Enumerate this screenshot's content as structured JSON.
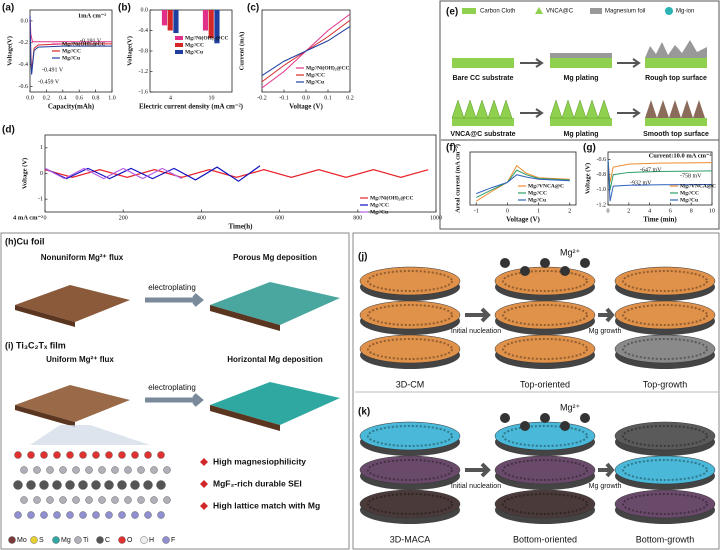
{
  "chart_data": [
    {
      "type": "line",
      "panel": "(a)",
      "subtitle": "1mA cm⁻²",
      "xlabel": "Capacity(mAh)",
      "ylabel": "Voltage(V)",
      "xlim": [
        0,
        1
      ],
      "xticks": [
        {
          "value": 0,
          "label": "0.0"
        },
        0.2,
        0.4,
        0.6,
        0.8,
        {
          "value": 1,
          "label": "1.0"
        }
      ],
      "ylim": [
        -0.65,
        0.1
      ],
      "yticks": [
        -0.6,
        -0.4,
        -0.2,
        {
          "value": 0,
          "label": "0.0"
        }
      ],
      "series": [
        {
          "name": "Mg//Ni(OH)₂@CC",
          "color": "#e0308a",
          "x": [
            0,
            0.01,
            0.03,
            0.1,
            0.4,
            0.7,
            1.0
          ],
          "values": [
            0.05,
            -0.12,
            -0.19,
            -0.19,
            -0.19,
            -0.19,
            -0.19
          ]
        },
        {
          "name": "Mg//CC",
          "color": "#d62728",
          "x": [
            0,
            0.01,
            0.02,
            0.05,
            0.1,
            0.4,
            0.7,
            1.0
          ],
          "values": [
            0.05,
            -0.3,
            -0.459,
            -0.25,
            -0.22,
            -0.21,
            -0.21,
            -0.21
          ]
        },
        {
          "name": "Mg//Cu",
          "color": "#1f3fa0",
          "x": [
            0,
            0.01,
            0.02,
            0.05,
            0.1,
            0.4,
            0.7,
            1.0
          ],
          "values": [
            0.05,
            -0.35,
            -0.491,
            -0.27,
            -0.24,
            -0.23,
            -0.23,
            -0.23
          ]
        }
      ],
      "annotations": [
        "-0.191 V",
        "-0.491 V",
        "-0.459 V"
      ]
    },
    {
      "type": "bar",
      "panel": "(b)",
      "xlabel": "Electric current density (mA cm⁻²)",
      "ylabel": "Voltage(V)",
      "categories": [
        "4",
        "10"
      ],
      "ylim": [
        -1.6,
        0
      ],
      "yticks": [
        -1.6,
        -1.2,
        -0.8,
        -0.4,
        {
          "value": 0,
          "label": "0.0"
        }
      ],
      "series": [
        {
          "name": "Mg//Ni(OH)₂@CC",
          "color": "#e0308a",
          "values": [
            -0.3,
            -0.4
          ]
        },
        {
          "name": "Mg//CC",
          "color": "#d62728",
          "values": [
            -0.4,
            -0.55
          ]
        },
        {
          "name": "Mg//Cu",
          "color": "#1f3fa0",
          "values": [
            -0.45,
            -0.65
          ]
        }
      ]
    },
    {
      "type": "line",
      "panel": "(c)",
      "xlabel": "Voltage (V)",
      "ylabel": "Current (mA)",
      "xlim": [
        -0.2,
        0.2
      ],
      "xticks": [
        -0.2,
        -0.1,
        {
          "value": 0,
          "label": "0.0"
        },
        0.1,
        0.2
      ],
      "ylim": [
        -1,
        1
      ],
      "series": [
        {
          "name": "Mg//Ni(OH)₂@CC",
          "color": "#e0308a",
          "x": [
            -0.2,
            -0.1,
            0,
            0.1,
            0.2
          ],
          "values": [
            -0.9,
            -0.5,
            0,
            0.5,
            0.9
          ]
        },
        {
          "name": "Mg//CC",
          "color": "#d62728",
          "x": [
            -0.2,
            -0.1,
            0,
            0.1,
            0.2
          ],
          "values": [
            -0.75,
            -0.35,
            0,
            0.35,
            0.75
          ]
        },
        {
          "name": "Mg//Cu",
          "color": "#1f3fa0",
          "x": [
            -0.2,
            -0.1,
            0,
            0.1,
            0.2
          ],
          "values": [
            -0.6,
            -0.25,
            0,
            0.25,
            0.6
          ]
        }
      ]
    },
    {
      "type": "line",
      "panel": "(d)",
      "subtitle": "4 mA cm⁻²",
      "xlabel": "Time(h)",
      "ylabel": "Voltage (V)",
      "xlim": [
        0,
        1000
      ],
      "xticks": [
        0,
        200,
        400,
        600,
        800,
        1000
      ],
      "ylim": [
        -1.5,
        1.5
      ],
      "yticks": [
        -1,
        0,
        1
      ],
      "series": [
        {
          "name": "Mg//Ni(OH)₂@CC",
          "color": "#e8242a",
          "x": [
            0,
            70,
            140,
            210,
            280,
            350,
            420,
            490,
            560,
            630,
            700,
            770,
            840,
            910,
            980
          ],
          "values": [
            0.15,
            -0.15,
            0.15,
            -0.15,
            0.15,
            -0.15,
            0.15,
            -0.15,
            0.15,
            -0.15,
            0.15,
            -0.15,
            0.15,
            -0.15,
            0.15
          ]
        },
        {
          "name": "Mg//CC",
          "color": "#1010c0",
          "x": [
            0,
            55,
            110,
            165,
            220,
            275,
            330,
            385,
            440,
            495,
            550
          ],
          "values": [
            0.2,
            -0.2,
            0.2,
            -0.2,
            0.2,
            -0.2,
            0.2,
            -0.25,
            0.25,
            -0.3,
            0.3
          ]
        },
        {
          "name": "Mg//Cu",
          "color": "#b45de8",
          "x": [
            0,
            50,
            100,
            150,
            200,
            250,
            300,
            350
          ],
          "values": [
            0.2,
            -0.2,
            0.2,
            -0.2,
            0.2,
            -0.2,
            0.2,
            -0.2
          ]
        }
      ]
    },
    {
      "type": "line",
      "panel": "(f)",
      "xlabel": "Voltage (V)",
      "ylabel": "Areal current (mA cm⁻²)",
      "xlim": [
        -1.2,
        2.2
      ],
      "xticks": [
        -1,
        0,
        1,
        2
      ],
      "ylim": [
        -3,
        4
      ],
      "series": [
        {
          "name": "Mg//VNCA@C",
          "color": "#f08c30",
          "x": [
            -1,
            -0.5,
            0,
            0.3,
            0.6,
            1,
            2
          ],
          "values": [
            -2.5,
            -1.2,
            0,
            2.2,
            1.2,
            0.6,
            0.4
          ]
        },
        {
          "name": "Mg//CC",
          "color": "#2e9e6a",
          "x": [
            -1,
            -0.5,
            0,
            0.3,
            0.6,
            1,
            2
          ],
          "values": [
            -2,
            -1,
            0,
            1.6,
            1,
            0.5,
            0.3
          ]
        },
        {
          "name": "Mg//Cu",
          "color": "#3060c0",
          "x": [
            -1,
            -0.5,
            0,
            0.3,
            0.6,
            1,
            2
          ],
          "values": [
            -1.5,
            -0.7,
            0,
            1,
            0.7,
            0.4,
            0.2
          ]
        }
      ]
    },
    {
      "type": "line",
      "panel": "(g)",
      "subtitle": "Current:10.0 mA cm⁻²",
      "xlabel": "Time (min)",
      "ylabel": "Voltage (V)",
      "xlim": [
        0,
        10
      ],
      "xticks": [
        0,
        2,
        4,
        6,
        8,
        10
      ],
      "ylim": [
        -1.2,
        -0.5
      ],
      "yticks": [
        -1.2,
        {
          "value": -1,
          "label": "-1.0"
        },
        -0.8,
        -0.6
      ],
      "series": [
        {
          "name": "Mg//VNCA@C",
          "color": "#f08c30",
          "x": [
            0,
            0.2,
            0.5,
            2,
            5,
            10
          ],
          "values": [
            -0.6,
            -0.9,
            -0.7,
            -0.66,
            -0.647,
            -0.64
          ]
        },
        {
          "name": "Mg//CC",
          "color": "#2e9e6a",
          "x": [
            0,
            0.2,
            0.5,
            2,
            5,
            10
          ],
          "values": [
            -0.6,
            -1.0,
            -0.8,
            -0.77,
            -0.758,
            -0.75
          ]
        },
        {
          "name": "Mg//Cu",
          "color": "#3060c0",
          "x": [
            0,
            0.2,
            0.5,
            2,
            5,
            10
          ],
          "values": [
            -0.6,
            -1.15,
            -0.95,
            -0.94,
            -0.932,
            -0.93
          ]
        }
      ],
      "annotations": [
        "-647 mV",
        "-758 mV",
        "-932 mV"
      ]
    }
  ],
  "diagrams": {
    "e": {
      "panel": "(e)",
      "legend": [
        "Carbon Cloth",
        "VNCA@C",
        "Magnesium foil",
        "Mg-ion"
      ],
      "row1": [
        "Bare CC substrate",
        "Mg plating",
        "Rough top surface"
      ],
      "row2": [
        "VNCA@C substrate",
        "Mg plating",
        "Smooth top surface"
      ]
    },
    "h": {
      "panel": "(h)Cu foil",
      "flux": "Nonuniform Mg²⁺ flux",
      "process": "electroplating",
      "result": "Porous Mg deposition"
    },
    "i": {
      "panel": "(i) Ti₃C₂Tₓ film",
      "flux": "Uniform Mg²⁺ flux",
      "process": "electroplating",
      "result": "Horizontal Mg deposition",
      "features": [
        "High magnesiophilicity",
        "MgF₂-rich durable SEI",
        "High lattice match with Mg"
      ],
      "elements": [
        "Mo",
        "S",
        "Mg",
        "Ti",
        "C",
        "O",
        "H",
        "F"
      ]
    },
    "j": {
      "panel": "(j)",
      "ion": "Mg²⁺",
      "step1": "Initial nucleation",
      "step2": "Mg growth",
      "stages": [
        "3D-CM",
        "Top-oriented",
        "Top-growth"
      ]
    },
    "k": {
      "panel": "(k)",
      "ion": "Mg²⁺",
      "step1": "Initial nucleation",
      "step2": "Mg growth",
      "stages": [
        "3D-MACA",
        "Bottom-oriented",
        "Bottom-growth"
      ]
    }
  }
}
